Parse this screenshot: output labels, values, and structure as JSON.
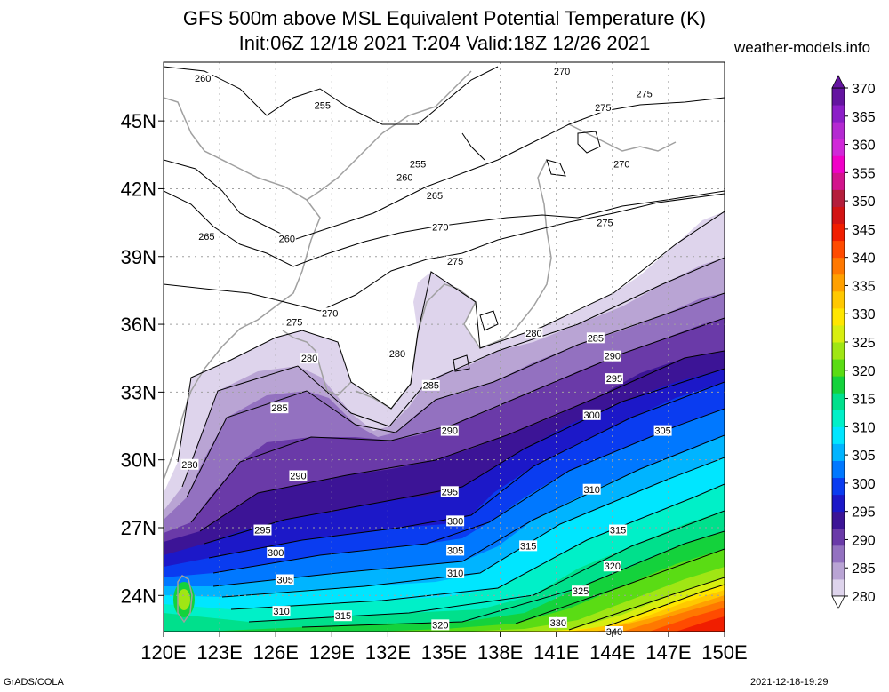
{
  "header": {
    "title_line1": "GFS 500m above MSL Equivalent Potential Temperature (K)",
    "title_line2": "Init:06Z 12/18 2021 T:204 Valid:18Z 12/26 2021",
    "brand": "weather-models.info"
  },
  "footer": {
    "left": "GrADS/COLA",
    "right": "2021-12-18-19:29"
  },
  "axes": {
    "lon_labels": [
      "120E",
      "123E",
      "126E",
      "129E",
      "132E",
      "135E",
      "138E",
      "141E",
      "144E",
      "147E",
      "150E"
    ],
    "lat_labels": [
      "45N",
      "42N",
      "39N",
      "36N",
      "33N",
      "30N",
      "27N",
      "24N"
    ],
    "lon_values": [
      120,
      123,
      126,
      129,
      132,
      135,
      138,
      141,
      144,
      147,
      150
    ],
    "lat_values": [
      45,
      42,
      39,
      36,
      33,
      30,
      27,
      24
    ]
  },
  "colorbar": {
    "levels": [
      "280",
      "285",
      "290",
      "295",
      "300",
      "305",
      "310",
      "315",
      "320",
      "325",
      "330",
      "335",
      "340",
      "345",
      "350",
      "355",
      "360",
      "365",
      "370"
    ],
    "colors": [
      "#ded4ec",
      "#b9a4d4",
      "#9371c0",
      "#6a3aa8",
      "#3c1496",
      "#1c18c8",
      "#0a3cf0",
      "#0078ff",
      "#00b4ff",
      "#00e6ff",
      "#00f0c8",
      "#00e08c",
      "#14d23c",
      "#5adc14",
      "#a0e614",
      "#d8ee10",
      "#ffe600",
      "#ffc800",
      "#ffa000",
      "#ff7800",
      "#ff4b00",
      "#f01e00",
      "#d21414",
      "#b41e3c",
      "#d2148c",
      "#f000c8",
      "#d028d8",
      "#b42ad2",
      "#8c1ec8",
      "#6414a0"
    ],
    "low": 280,
    "high": 370,
    "step": 5
  },
  "contour_labels": [
    {
      "text": "260",
      "lon": 122.1,
      "lat": 46.9
    },
    {
      "text": "255",
      "lon": 128.5,
      "lat": 45.7
    },
    {
      "text": "255",
      "lon": 133.6,
      "lat": 43.1
    },
    {
      "text": "260",
      "lon": 132.9,
      "lat": 42.5
    },
    {
      "text": "265",
      "lon": 134.5,
      "lat": 41.7
    },
    {
      "text": "265",
      "lon": 122.3,
      "lat": 39.9
    },
    {
      "text": "260",
      "lon": 126.6,
      "lat": 39.8
    },
    {
      "text": "270",
      "lon": 134.8,
      "lat": 40.3
    },
    {
      "text": "275",
      "lon": 135.6,
      "lat": 38.8
    },
    {
      "text": "270",
      "lon": 128.9,
      "lat": 36.5
    },
    {
      "text": "275",
      "lon": 127.0,
      "lat": 36.1
    },
    {
      "text": "270",
      "lon": 141.3,
      "lat": 47.2
    },
    {
      "text": "275",
      "lon": 143.5,
      "lat": 45.6
    },
    {
      "text": "275",
      "lon": 145.7,
      "lat": 46.2
    },
    {
      "text": "270",
      "lon": 144.5,
      "lat": 43.1
    },
    {
      "text": "275",
      "lon": 143.6,
      "lat": 40.5
    },
    {
      "text": "280",
      "lon": 127.8,
      "lat": 34.5
    },
    {
      "text": "280",
      "lon": 132.5,
      "lat": 34.7
    },
    {
      "text": "280",
      "lon": 139.8,
      "lat": 35.6
    },
    {
      "text": "280",
      "lon": 121.4,
      "lat": 29.8
    },
    {
      "text": "285",
      "lon": 126.2,
      "lat": 32.3
    },
    {
      "text": "285",
      "lon": 134.3,
      "lat": 33.3
    },
    {
      "text": "285",
      "lon": 143.1,
      "lat": 35.4
    },
    {
      "text": "290",
      "lon": 135.3,
      "lat": 31.3
    },
    {
      "text": "290",
      "lon": 127.2,
      "lat": 29.3
    },
    {
      "text": "290",
      "lon": 144.0,
      "lat": 34.6
    },
    {
      "text": "295",
      "lon": 144.1,
      "lat": 33.6
    },
    {
      "text": "295",
      "lon": 125.3,
      "lat": 26.9
    },
    {
      "text": "295",
      "lon": 135.3,
      "lat": 28.6
    },
    {
      "text": "300",
      "lon": 142.9,
      "lat": 32.0
    },
    {
      "text": "300",
      "lon": 126.0,
      "lat": 25.9
    },
    {
      "text": "300",
      "lon": 135.6,
      "lat": 27.3
    },
    {
      "text": "305",
      "lon": 146.7,
      "lat": 31.3
    },
    {
      "text": "305",
      "lon": 135.6,
      "lat": 26.0
    },
    {
      "text": "305",
      "lon": 126.5,
      "lat": 24.7
    },
    {
      "text": "310",
      "lon": 142.9,
      "lat": 28.7
    },
    {
      "text": "310",
      "lon": 135.6,
      "lat": 25.0
    },
    {
      "text": "310",
      "lon": 126.3,
      "lat": 23.3
    },
    {
      "text": "315",
      "lon": 144.3,
      "lat": 26.9
    },
    {
      "text": "315",
      "lon": 139.5,
      "lat": 26.2
    },
    {
      "text": "315",
      "lon": 129.6,
      "lat": 23.1
    },
    {
      "text": "320",
      "lon": 144.0,
      "lat": 25.3
    },
    {
      "text": "320",
      "lon": 134.8,
      "lat": 22.7
    },
    {
      "text": "325",
      "lon": 142.3,
      "lat": 24.2
    },
    {
      "text": "330",
      "lon": 141.1,
      "lat": 22.8
    },
    {
      "text": "340",
      "lon": 144.1,
      "lat": 22.4
    }
  ]
}
